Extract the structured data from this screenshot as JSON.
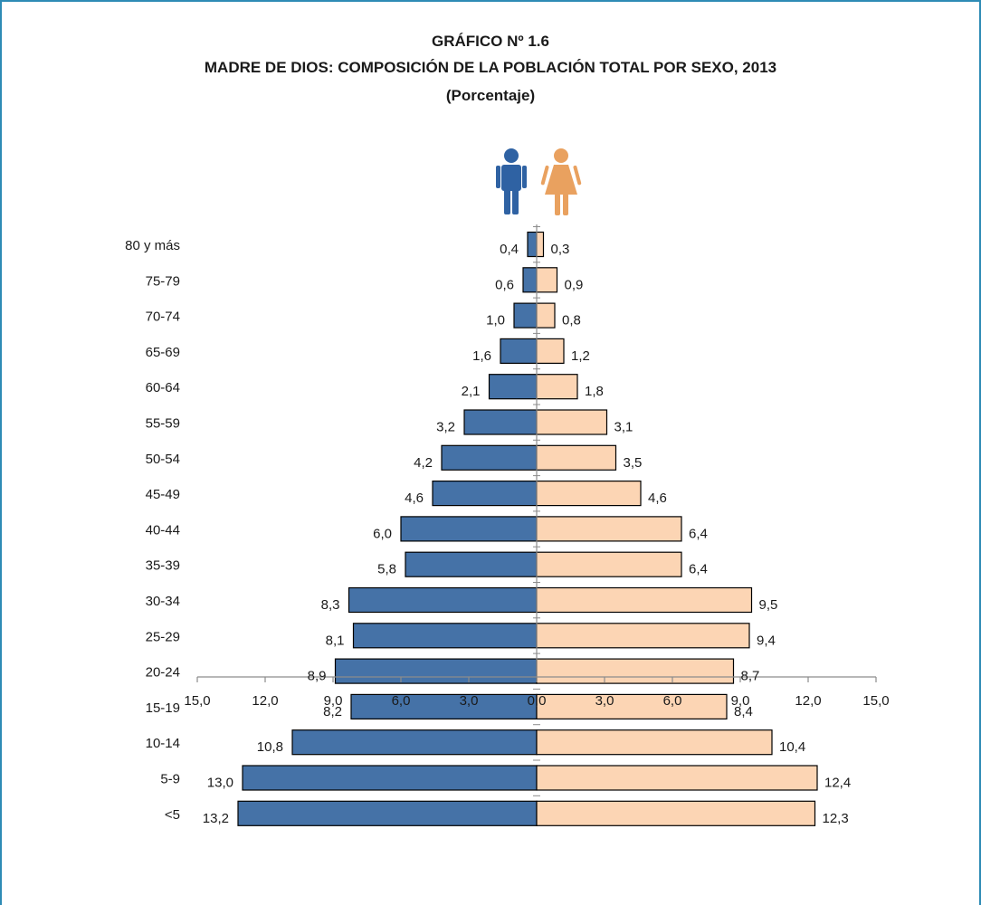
{
  "chart_data": {
    "type": "bar",
    "orientation": "horizontal-pyramid",
    "title": "GRÁFICO Nº 1.6",
    "subtitle": "MADRE DE DIOS: COMPOSICIÓN DE LA POBLACIÓN TOTAL POR SEXO, 2013",
    "subtitle2": "(Porcentaje)",
    "categories": [
      "80 y más",
      "75-79",
      "70-74",
      "65-69",
      "60-64",
      "55-59",
      "50-54",
      "45-49",
      "40-44",
      "35-39",
      "30-34",
      "25-29",
      "20-24",
      "15-19",
      "10-14",
      "5-9",
      "<5"
    ],
    "series": [
      {
        "side": "left",
        "values": [
          0.4,
          0.6,
          1.0,
          1.6,
          2.1,
          3.2,
          4.2,
          4.6,
          6.0,
          5.8,
          8.3,
          8.1,
          8.9,
          8.2,
          10.8,
          13.0,
          13.2
        ],
        "labels": [
          "0,4",
          "0,6",
          "1,0",
          "1,6",
          "2,1",
          "3,2",
          "4,2",
          "4,6",
          "6,0",
          "5,8",
          "8,3",
          "8,1",
          "8,9",
          "8,2",
          "10,8",
          "13,0",
          "13,2"
        ]
      },
      {
        "side": "right",
        "values": [
          0.3,
          0.9,
          0.8,
          1.2,
          1.8,
          3.1,
          3.5,
          4.6,
          6.4,
          6.4,
          9.5,
          9.4,
          8.7,
          8.4,
          10.4,
          12.4,
          12.3
        ],
        "labels": [
          "0,3",
          "0,9",
          "0,8",
          "1,2",
          "1,8",
          "3,1",
          "3,5",
          "4,6",
          "6,4",
          "6,4",
          "9,5",
          "9,4",
          "8,7",
          "8,4",
          "10,4",
          "12,4",
          "12,3"
        ]
      }
    ],
    "xlim": [
      -15,
      15
    ],
    "xticks": [
      -15,
      -12,
      -9,
      -6,
      -3,
      0,
      3,
      6,
      9,
      12,
      15
    ],
    "xtick_labels": [
      "15,0",
      "12,0",
      "9,0",
      "6,0",
      "3,0",
      "0,0",
      "3,0",
      "6,0",
      "9,0",
      "12,0",
      "15,0"
    ],
    "grid": false,
    "legend": "icons at top-center",
    "icons": [
      "male-figure-icon",
      "female-figure-icon"
    ],
    "colors": {
      "left_fill": "#4572a7",
      "right_fill": "#fcd5b4",
      "bar_stroke": "#000000",
      "axis": "#8c8c8c",
      "male_icon": "#2f62a3",
      "female_icon": "#e9a15f",
      "frame": "#2e8bb5"
    }
  }
}
